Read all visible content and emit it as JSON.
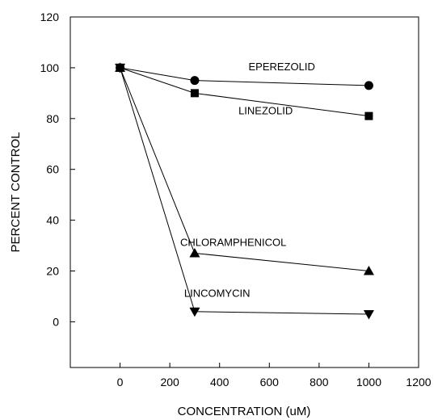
{
  "chart_data": {
    "type": "line",
    "title": "",
    "xlabel": "CONCENTRATION (uM)",
    "ylabel": "PERCENT CONTROL",
    "xlim": [
      -200,
      1200
    ],
    "ylim": [
      -18,
      120
    ],
    "xticks": [
      0,
      200,
      400,
      600,
      800,
      1000,
      1200
    ],
    "yticks": [
      0,
      20,
      40,
      60,
      80,
      100,
      120
    ],
    "grid": false,
    "legend": "none (series labelled directly on the plot)",
    "series": [
      {
        "name": "EPEREZOLID",
        "marker": "circle",
        "x": [
          0,
          300,
          1000
        ],
        "y": [
          100,
          95,
          93
        ]
      },
      {
        "name": "LINEZOLID",
        "marker": "square",
        "x": [
          0,
          300,
          1000
        ],
        "y": [
          100,
          90,
          81
        ]
      },
      {
        "name": "CHLORAMPHENICOL",
        "marker": "triangle-up",
        "x": [
          0,
          300,
          1000
        ],
        "y": [
          100,
          27,
          20
        ]
      },
      {
        "name": "LINCOMYCIN",
        "marker": "triangle-down",
        "x": [
          0,
          300,
          1000
        ],
        "y": [
          100,
          4,
          3
        ]
      }
    ]
  }
}
